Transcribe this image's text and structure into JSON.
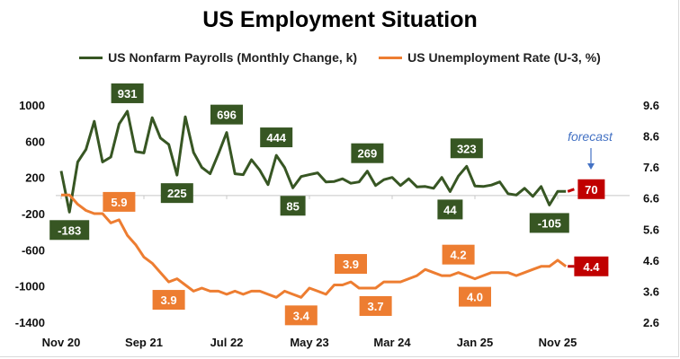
{
  "chart_data": {
    "type": "line",
    "title": "US Employment Situation",
    "x_ticks": [
      "Nov 20",
      "Sep 21",
      "Jul 22",
      "May 23",
      "Mar 24",
      "Jan 25",
      "Nov 25"
    ],
    "y_left": {
      "ticks": [
        1000,
        600,
        200,
        -200,
        -600,
        -1000,
        -1400
      ],
      "range": [
        -1400,
        1000
      ]
    },
    "y_right": {
      "ticks": [
        9.6,
        8.6,
        7.6,
        6.6,
        5.6,
        4.6,
        3.6,
        2.6
      ],
      "range": [
        2.6,
        9.6
      ]
    },
    "grid": false,
    "legend_position": "top",
    "series": [
      {
        "name": "US Nonfarm Payrolls (Monthly Change, k)",
        "axis": "left",
        "color": "#375623",
        "values": [
          271,
          -183,
          370,
          510,
          820,
          370,
          425,
          790,
          931,
          485,
          470,
          860,
          635,
          565,
          225,
          870,
          475,
          310,
          240,
          460,
          696,
          240,
          230,
          395,
          280,
          120,
          444,
          310,
          85,
          210,
          230,
          250,
          150,
          155,
          185,
          135,
          150,
          269,
          110,
          175,
          200,
          110,
          185,
          95,
          100,
          80,
          200,
          44,
          215,
          323,
          105,
          100,
          115,
          150,
          20,
          5,
          80,
          -10,
          100,
          -105,
          45,
          45
        ],
        "forecast": 70,
        "labels": [
          {
            "i": 1,
            "text": "-183",
            "pos": "below"
          },
          {
            "i": 8,
            "text": "931",
            "pos": "above"
          },
          {
            "i": 14,
            "text": "225",
            "pos": "below"
          },
          {
            "i": 20,
            "text": "696",
            "pos": "above"
          },
          {
            "i": 26,
            "text": "444",
            "pos": "above"
          },
          {
            "i": 28,
            "text": "85",
            "pos": "below"
          },
          {
            "i": 37,
            "text": "269",
            "pos": "above"
          },
          {
            "i": 47,
            "text": "44",
            "pos": "below"
          },
          {
            "i": 49,
            "text": "323",
            "pos": "above"
          },
          {
            "i": 59,
            "text": "-105",
            "pos": "below"
          }
        ],
        "forecast_label": "70"
      },
      {
        "name": "US Unemployment Rate (U-3, %)",
        "axis": "right",
        "color": "#ed7d31",
        "values": [
          6.7,
          6.7,
          6.4,
          6.2,
          6.1,
          6.1,
          5.8,
          5.9,
          5.4,
          5.1,
          4.7,
          4.5,
          4.2,
          3.9,
          4.0,
          3.8,
          3.6,
          3.7,
          3.6,
          3.6,
          3.5,
          3.6,
          3.5,
          3.6,
          3.6,
          3.5,
          3.4,
          3.6,
          3.5,
          3.4,
          3.7,
          3.6,
          3.5,
          3.8,
          3.8,
          3.9,
          3.7,
          3.7,
          3.7,
          3.9,
          3.9,
          3.9,
          4.0,
          4.1,
          4.3,
          4.2,
          4.1,
          4.1,
          4.2,
          4.1,
          4.0,
          4.1,
          4.2,
          4.2,
          4.2,
          4.1,
          4.2,
          4.3,
          4.4,
          4.4,
          4.6,
          4.4
        ],
        "forecast": 4.4,
        "labels": [
          {
            "i": 7,
            "text": "5.9",
            "pos": "above"
          },
          {
            "i": 13,
            "text": "3.9",
            "pos": "below"
          },
          {
            "i": 29,
            "text": "3.4",
            "pos": "below"
          },
          {
            "i": 35,
            "text": "3.9",
            "pos": "above"
          },
          {
            "i": 38,
            "text": "3.7",
            "pos": "below"
          },
          {
            "i": 48,
            "text": "4.2",
            "pos": "above"
          },
          {
            "i": 50,
            "text": "4.0",
            "pos": "below"
          }
        ],
        "forecast_label": "4.4"
      }
    ],
    "forecast_color": "#c00000",
    "annotation": "forecast",
    "annotation_color": "#4472c4"
  }
}
